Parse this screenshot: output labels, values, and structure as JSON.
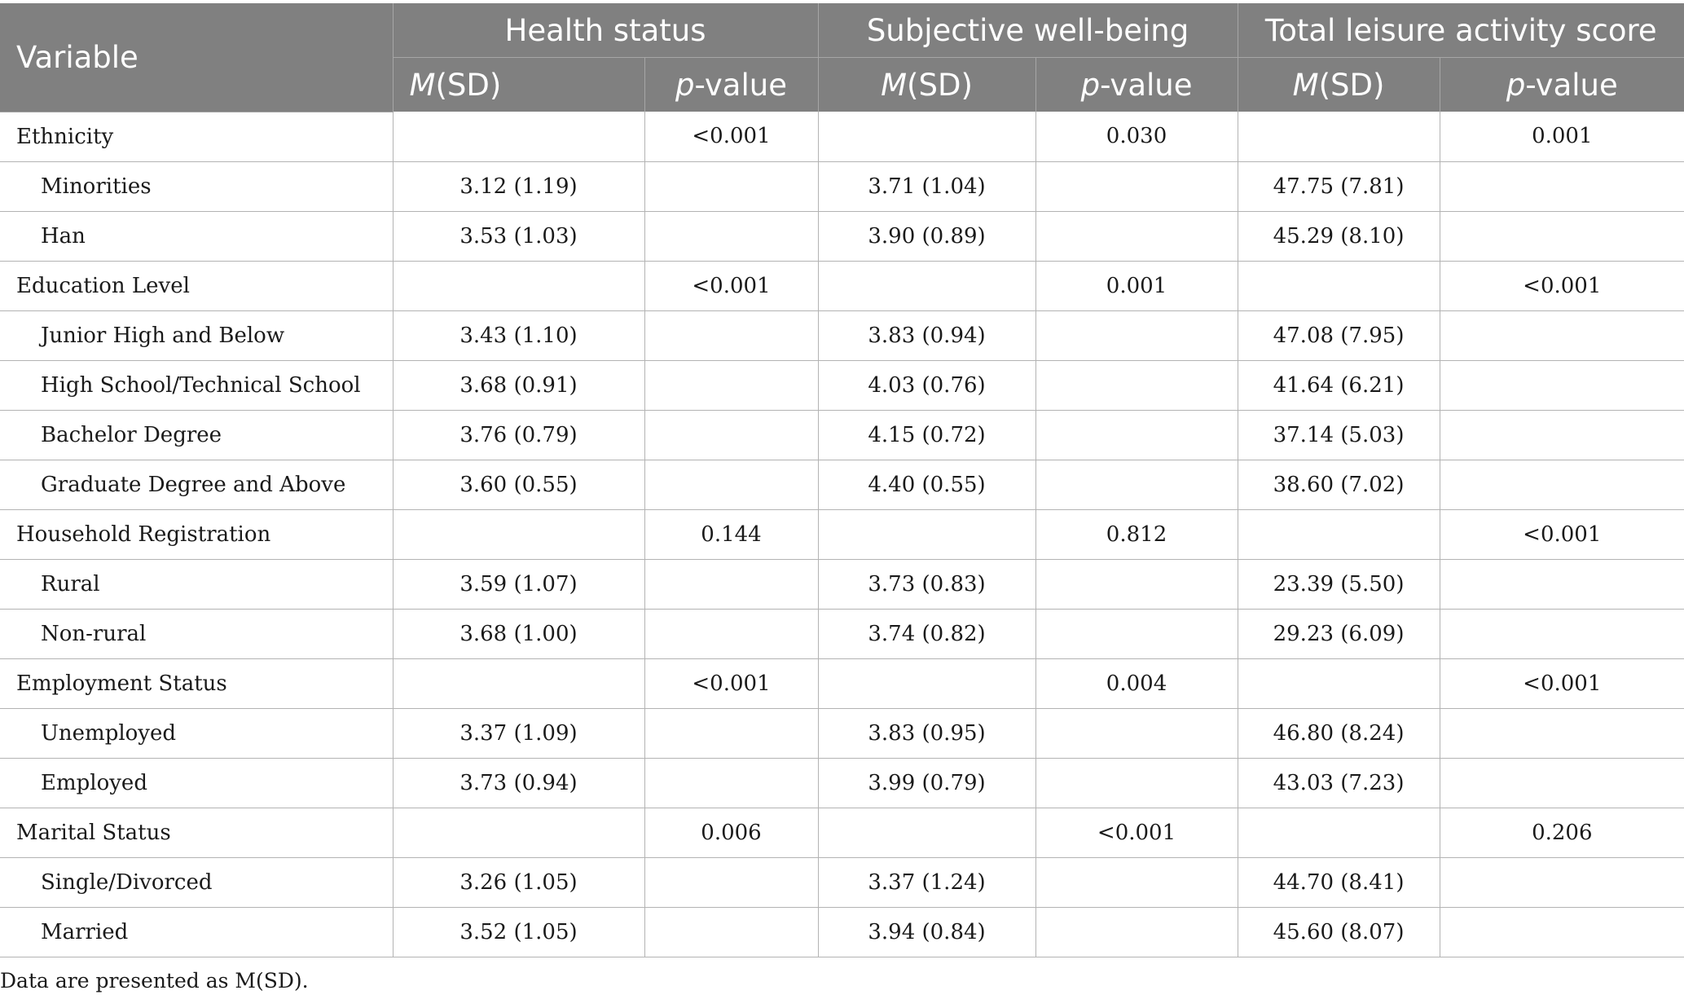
{
  "header": {
    "variable": "Variable",
    "groups": [
      "Health status",
      "Subjective well-being",
      "Total leisure activity score"
    ],
    "m_italic": "M",
    "m_rest": "(SD)",
    "p_italic": "p",
    "p_rest": "-value"
  },
  "rows": [
    {
      "label": "Ethnicity",
      "cells": [
        "",
        "<0.001",
        "",
        "0.030",
        "",
        "0.001"
      ]
    },
    {
      "label": "Minorities",
      "cells": [
        "3.12 (1.19)",
        "",
        "3.71 (1.04)",
        "",
        "47.75 (7.81)",
        ""
      ]
    },
    {
      "label": "Han",
      "cells": [
        "3.53 (1.03)",
        "",
        "3.90 (0.89)",
        "",
        "45.29 (8.10)",
        ""
      ]
    },
    {
      "label": "Education Level",
      "cells": [
        "",
        "<0.001",
        "",
        "0.001",
        "",
        "<0.001"
      ]
    },
    {
      "label": "Junior High and Below",
      "cells": [
        "3.43 (1.10)",
        "",
        "3.83 (0.94)",
        "",
        "47.08 (7.95)",
        ""
      ]
    },
    {
      "label": "High School/Technical School",
      "cells": [
        "3.68 (0.91)",
        "",
        "4.03 (0.76)",
        "",
        "41.64 (6.21)",
        ""
      ]
    },
    {
      "label": "Bachelor Degree",
      "cells": [
        "3.76 (0.79)",
        "",
        "4.15 (0.72)",
        "",
        "37.14 (5.03)",
        ""
      ]
    },
    {
      "label": "Graduate Degree and Above",
      "cells": [
        "3.60 (0.55)",
        "",
        "4.40 (0.55)",
        "",
        "38.60 (7.02)",
        ""
      ]
    },
    {
      "label": "Household Registration",
      "cells": [
        "",
        "0.144",
        "",
        "0.812",
        "",
        "<0.001"
      ]
    },
    {
      "label": "Rural",
      "cells": [
        "3.59 (1.07)",
        "",
        "3.73 (0.83)",
        "",
        "23.39 (5.50)",
        ""
      ]
    },
    {
      "label": "Non-rural",
      "cells": [
        "3.68 (1.00)",
        "",
        "3.74 (0.82)",
        "",
        "29.23 (6.09)",
        ""
      ]
    },
    {
      "label": "Employment Status",
      "cells": [
        "",
        "<0.001",
        "",
        "0.004",
        "",
        "<0.001"
      ]
    },
    {
      "label": "Unemployed",
      "cells": [
        "3.37 (1.09)",
        "",
        "3.83 (0.95)",
        "",
        "46.80 (8.24)",
        ""
      ]
    },
    {
      "label": "Employed",
      "cells": [
        "3.73 (0.94)",
        "",
        "3.99 (0.79)",
        "",
        "43.03 (7.23)",
        ""
      ]
    },
    {
      "label": "Marital Status",
      "cells": [
        "",
        "0.006",
        "",
        "<0.001",
        "",
        "0.206"
      ]
    },
    {
      "label": "Single/Divorced",
      "cells": [
        "3.26 (1.05)",
        "",
        "3.37 (1.24)",
        "",
        "44.70 (8.41)",
        ""
      ]
    },
    {
      "label": "Married",
      "cells": [
        "3.52 (1.05)",
        "",
        "3.94 (0.84)",
        "",
        "45.60 (8.07)",
        ""
      ]
    }
  ],
  "note": "Data are presented as M(SD)."
}
